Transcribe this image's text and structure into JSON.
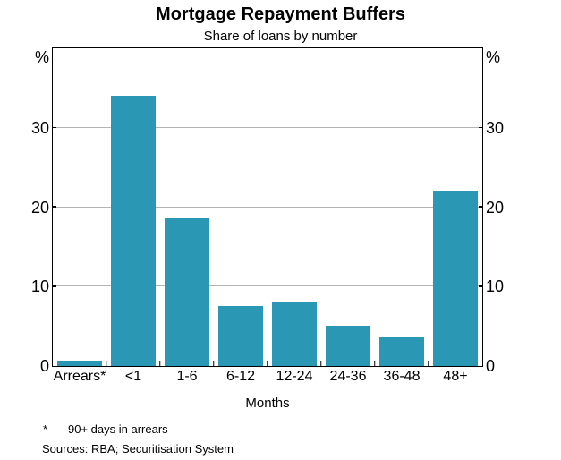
{
  "page": {
    "background": "#ffffff"
  },
  "chart_data": {
    "type": "bar",
    "title": "Mortgage Repayment Buffers",
    "subtitle": "Share of loans by number",
    "categories": [
      "Arrears*",
      "<1",
      "1-6",
      "6-12",
      "12-24",
      "24-36",
      "36-48",
      "48+"
    ],
    "values": [
      0.6,
      34,
      18.5,
      7.5,
      8.1,
      5,
      3.5,
      22
    ],
    "xlabel": "Months",
    "ylabel_left": "%",
    "ylabel_right": "%",
    "ylim": [
      0,
      40
    ],
    "yticks": [
      0,
      10,
      20,
      30
    ],
    "gridlines": [
      10,
      20,
      30
    ],
    "grid": true,
    "legend_position": "none",
    "bar_color": "#2a98b4",
    "grid_color": "#b4b4b4",
    "axis_color": "#000000"
  },
  "footnote": {
    "marker": "*",
    "text": "90+ days in arrears"
  },
  "sources": {
    "label": "Sources:",
    "text": "RBA; Securitisation System"
  }
}
